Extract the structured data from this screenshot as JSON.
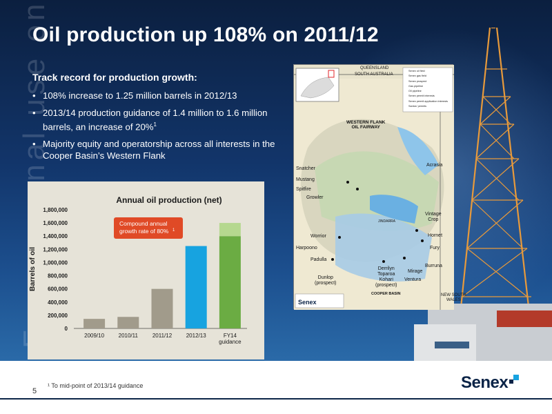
{
  "slide": {
    "title": "Oil production up 108% on 2011/12",
    "watermark": "For personal use only",
    "page_number": "5",
    "footnote": "¹ To mid-point of 2013/14 guidance",
    "logo_text": "Senex"
  },
  "bullets": {
    "heading": "Track record for production growth:",
    "items": [
      {
        "text": "108% increase to 1.25 million barrels in 2012/13",
        "sup": ""
      },
      {
        "text": "2013/14 production guidance of 1.4 million to 1.6 million barrels, an increase of 20%",
        "sup": "1"
      },
      {
        "text": "Majority equity and operatorship across all interests in the Cooper Basin’s Western Flank",
        "sup": ""
      }
    ]
  },
  "chart_data": {
    "type": "bar",
    "title": "Annual oil production (net)",
    "ylabel": "Barrels of oil",
    "xlabel": "",
    "categories": [
      "2009/10",
      "2010/11",
      "2011/12",
      "2012/13",
      "FY14 guidance"
    ],
    "category_lines": [
      [
        "2009/10"
      ],
      [
        "2010/11"
      ],
      [
        "2011/12"
      ],
      [
        "2012/13"
      ],
      [
        "FY14",
        "guidance"
      ]
    ],
    "values": [
      145000,
      175000,
      600000,
      1250000,
      1600000
    ],
    "guidance_low": 1400000,
    "guidance_high": 1600000,
    "ylim": [
      0,
      1800000
    ],
    "yticks": [
      0,
      200000,
      400000,
      600000,
      800000,
      1000000,
      1200000,
      1400000,
      1600000,
      1800000
    ],
    "ytick_labels": [
      "0",
      "200,000",
      "400,000",
      "600,000",
      "800,000",
      "1,000,000",
      "1,200,000",
      "1,400,000",
      "1,600,000",
      "1,800,000"
    ],
    "bar_colors": [
      "#a19b8b",
      "#a19b8b",
      "#a19b8b",
      "#17a3e0",
      "#6bac43"
    ],
    "guidance_top_color": "#b5d88f",
    "annotation": {
      "lines": [
        "Compound annual",
        "growth rate of 80%"
      ],
      "sup": "1",
      "color": "#e04a26"
    },
    "grid": false,
    "legend": "none"
  },
  "map": {
    "labels": {
      "queensland": "QUEENSLAND",
      "south_australia": "SOUTH AUSTRALIA",
      "fairway": [
        "WESTERN FLANK",
        "OIL FAIRWAY"
      ],
      "snatcher": "Snatcher",
      "mustang": "Mustang",
      "spitfire": "Spitfire",
      "growler": "Growler",
      "acrasia": "Acrasia",
      "vintage_crop": [
        "Vintage",
        "Crop"
      ],
      "hornet": "Hornet",
      "fury": "Fury",
      "burruna": "Burruna",
      "worrior": "Worrior",
      "harpoono": "Harpoono",
      "padulla": "Padulla",
      "dunlop": [
        "Dunlop",
        "(prospect)"
      ],
      "derrilyn": [
        "Derrilyn",
        "Toparoa",
        "Kohari",
        "(prospect)"
      ],
      "mirage": "Mirage",
      "ventura": "Ventura",
      "cooper_basin": "COOPER BASIN",
      "jindarra": "JINDARRA",
      "nsw": [
        "NEW SOUTH",
        "WALES"
      ],
      "senex": "Senex"
    },
    "legend": [
      "Senex oil field",
      "Senex gas field",
      "Senex prospect",
      "Gas pipeline",
      "Oil pipeline",
      "Senex permit interests",
      "Senex permit application interests",
      "Santos' permits"
    ]
  },
  "colors": {
    "navy": "#0b2447",
    "accent_blue": "#17a3e0"
  }
}
